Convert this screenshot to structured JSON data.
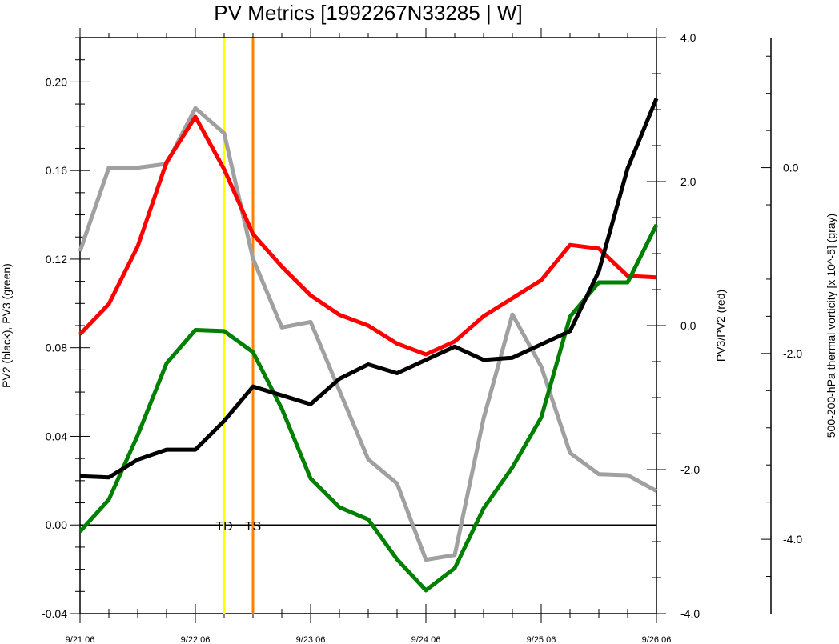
{
  "chart_data": {
    "type": "line",
    "title": "PV Metrics [1992267N33285 | W]",
    "x_tick_labels": [
      "9/21 06",
      "9/22 06",
      "9/23 06",
      "9/24 06",
      "9/25 06",
      "9/26 06"
    ],
    "x_range_hours": [
      0,
      120
    ],
    "left_axis": {
      "label": "PV2 (black), PV3 (green)",
      "range": [
        -0.04,
        0.22
      ],
      "ticks": [
        "-0.04",
        "0.00",
        "0.04",
        "0.08",
        "0.12",
        "0.16",
        "0.20"
      ]
    },
    "right_axis": {
      "label": "PV3/PV2 (red)",
      "range": [
        -4.0,
        4.0
      ],
      "ticks": [
        "-4.0",
        "-2.0",
        "0.0",
        "2.0",
        "4.0"
      ]
    },
    "far_right_axis": {
      "label": "500-200-hPa thermal vorticity [x 10^-5] (gray)",
      "range": [
        -4.8,
        1.4
      ],
      "ticks": [
        "-4.0",
        "-2.0",
        "0.0"
      ]
    },
    "events": [
      {
        "label": "TD",
        "x": 30,
        "color": "#ffff00"
      },
      {
        "label": "TS",
        "x": 36,
        "color": "#ff8000"
      }
    ],
    "x": [
      0,
      6,
      12,
      18,
      24,
      30,
      36,
      42,
      48,
      54,
      60,
      66,
      72,
      78,
      84,
      90,
      96,
      102,
      108,
      114,
      120
    ],
    "series": [
      {
        "name": "PV2",
        "axis": "left",
        "color": "#000000",
        "values": [
          0.022,
          0.0215,
          0.0295,
          0.034,
          0.034,
          0.047,
          0.0625,
          0.0585,
          0.0545,
          0.066,
          0.0725,
          0.0685,
          0.0745,
          0.0805,
          0.0745,
          0.0755,
          0.0815,
          0.0875,
          0.1145,
          0.161,
          0.1925
        ]
      },
      {
        "name": "PV3",
        "axis": "left",
        "color": "#008000",
        "values": [
          -0.003,
          0.0115,
          0.0405,
          0.073,
          0.088,
          0.0875,
          0.078,
          0.0525,
          0.021,
          0.008,
          0.0025,
          -0.0155,
          -0.0295,
          -0.0195,
          0.0075,
          0.026,
          0.0485,
          0.094,
          0.1095,
          0.1095,
          0.1355
        ]
      },
      {
        "name": "PV3/PV2",
        "axis": "right",
        "color": "#ff0000",
        "values": [
          -0.12,
          0.3,
          1.1,
          2.27,
          2.9,
          2.17,
          1.27,
          0.82,
          0.42,
          0.15,
          0.0,
          -0.25,
          -0.4,
          -0.22,
          0.13,
          0.38,
          0.63,
          1.12,
          1.07,
          0.69,
          0.67
        ]
      },
      {
        "name": "thermal vorticity",
        "axis": "far_right",
        "color": "#a0a0a0",
        "values": [
          -0.9,
          0.0,
          0.0,
          0.04,
          0.64,
          0.37,
          -0.98,
          -1.72,
          -1.66,
          -2.4,
          -3.14,
          -3.4,
          -4.22,
          -4.17,
          -2.7,
          -1.58,
          -2.14,
          -3.07,
          -3.3,
          -3.31,
          -3.48
        ]
      }
    ],
    "grid": false,
    "legend": "none"
  }
}
